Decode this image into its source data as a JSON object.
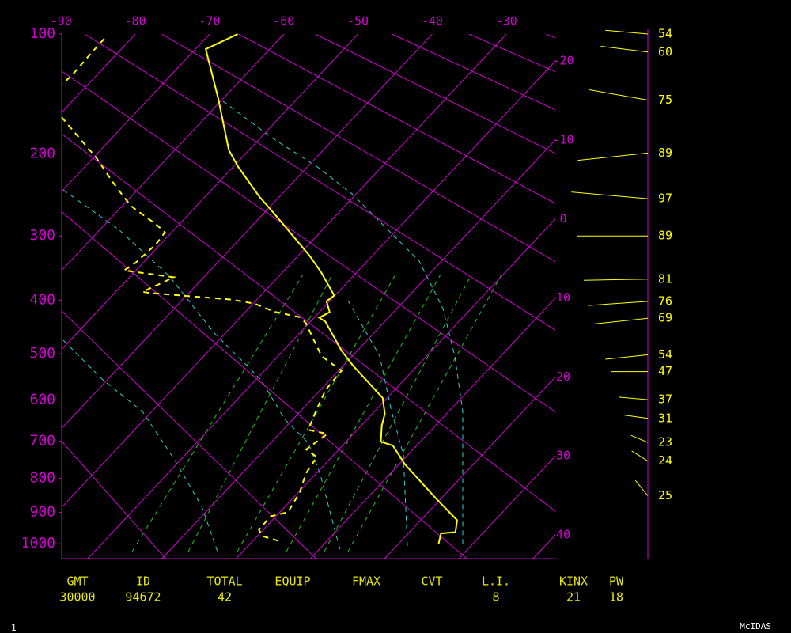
{
  "chart_data": {
    "type": "skewt",
    "ylim": [
      100,
      1050
    ],
    "yticks": [
      100,
      200,
      300,
      400,
      500,
      600,
      700,
      800,
      900,
      1000
    ],
    "xlim": [
      -23.5,
      43
    ],
    "xticks": [
      -90,
      -80,
      -70,
      -60,
      -50,
      -40,
      -30,
      -20,
      -10,
      0,
      10,
      20,
      30,
      40
    ],
    "axis_color": "#d400d4",
    "series": [
      {
        "color": "#ffff00",
        "style": "solid",
        "pressure": [
          100,
          110,
          148,
          196,
          214,
          249,
          269,
          329,
          354,
          392,
          402,
          421,
          431,
          438,
          494,
          526,
          595,
          632,
          661,
          701,
          711,
          762,
          859,
          924,
          962,
          966,
          1000
        ],
        "values": [
          -66.2,
          -68.6,
          -60.6,
          -52.7,
          -49.3,
          -42.6,
          -38.7,
          -28.4,
          -24.8,
          -20.1,
          -20.4,
          -18.6,
          -19.3,
          -18.0,
          -12.1,
          -8.5,
          -0.6,
          1.7,
          2.8,
          4.7,
          6.8,
          10.9,
          19.4,
          24.9,
          26.2,
          24.4,
          25.4
        ]
      },
      {
        "color": "#ffff00",
        "style": "dashed",
        "pressure": [
          103,
          115,
          129,
          136,
          null,
          164,
          180,
          204,
          230,
          249,
          261,
          284,
          295,
          312,
          339,
          351,
          362,
          386,
          388,
          395,
          399,
          406,
          420,
          430,
          441,
          471,
          505,
          535,
          577,
          623,
          671,
          681,
          721,
          741,
          785,
          841,
          899,
          912,
          954,
          975,
          990
        ],
        "values": [
          -83.6,
          -83.5,
          -83.3,
          -83.5,
          null,
          -79.4,
          -75.3,
          -69.6,
          -64.5,
          -60.9,
          -58.6,
          -53.1,
          -50.9,
          -50.6,
          -51.0,
          -51.6,
          -44.0,
          -46.4,
          -45.0,
          -37.6,
          -33.5,
          -29.8,
          -26.2,
          -22.0,
          -20.4,
          -17.4,
          -14.1,
          -9.6,
          -9.3,
          -8.0,
          -6.6,
          -3.5,
          -4.4,
          -2.0,
          -1.4,
          0.2,
          1.1,
          -0.7,
          -0.6,
          0.7,
          3.4
        ]
      }
    ],
    "wind": {
      "color": "#ffff00",
      "pressure": [
        100,
        112,
        149,
        199,
        251,
        300,
        365,
        402,
        432,
        502,
        537,
        599,
        643,
        703,
        752,
        850
      ],
      "speed": [
        54,
        60,
        75,
        89,
        97,
        89,
        81,
        76,
        69,
        54,
        47,
        37,
        31,
        23,
        24,
        25
      ],
      "direction": [
        275,
        277,
        280,
        264,
        275,
        270,
        269,
        266,
        264,
        264,
        270,
        275,
        278,
        293,
        302,
        321
      ]
    },
    "stats": [
      {
        "label": "GMT",
        "value": 30000
      },
      {
        "label": "ID",
        "value": 94672
      },
      {
        "label": "TOTAL",
        "value": 42
      },
      {
        "label": "EQUIP"
      },
      {
        "label": "FMAX"
      },
      {
        "label": "CVT"
      },
      {
        "label": "L.I.",
        "value": 8
      },
      {
        "label": "KINX",
        "value": 21
      },
      {
        "label": "PW",
        "value": 18
      }
    ],
    "footer_left": "1",
    "footer_right": "McIDAS"
  }
}
